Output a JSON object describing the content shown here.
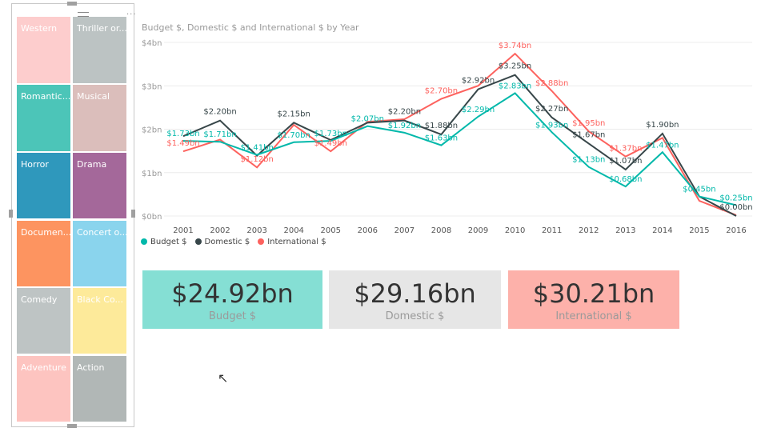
{
  "slicer": {
    "tiles": [
      {
        "label": "Western",
        "color": "#fdcdcd"
      },
      {
        "label": "Thriller or...",
        "color": "#bcc3c3"
      },
      {
        "label": "Romantic...",
        "color": "#4cc5b8"
      },
      {
        "label": "Musical",
        "color": "#dbbebb"
      },
      {
        "label": "Horror",
        "color": "#2f98bc"
      },
      {
        "label": "Drama",
        "color": "#a4689a"
      },
      {
        "label": "Documen...",
        "color": "#fd9460"
      },
      {
        "label": "Concert o...",
        "color": "#8ad4ed"
      },
      {
        "label": "Comedy",
        "color": "#bec4c4"
      },
      {
        "label": "Black Co...",
        "color": "#fdea9a"
      },
      {
        "label": "Adventure",
        "color": "#fdc4c0"
      },
      {
        "label": "Action",
        "color": "#b1b7b6"
      }
    ]
  },
  "chart_data": {
    "type": "line",
    "title": "Budget $, Domestic $ and International $ by Year",
    "x": [
      2001,
      2002,
      2003,
      2004,
      2005,
      2006,
      2007,
      2008,
      2009,
      2010,
      2011,
      2012,
      2013,
      2014,
      2015,
      2016
    ],
    "yticks": [
      "$0bn",
      "$1bn",
      "$2bn",
      "$3bn",
      "$4bn"
    ],
    "ylim": [
      0,
      4
    ],
    "grid": true,
    "legend": "bottom-left",
    "series": [
      {
        "name": "Budget $",
        "color": "#01b8aa",
        "values": [
          1.73,
          1.71,
          1.41,
          1.7,
          1.73,
          2.07,
          1.92,
          1.63,
          2.29,
          2.83,
          1.93,
          1.13,
          0.68,
          1.47,
          0.45,
          0.25
        ],
        "labels": [
          "$1.73bn",
          "$1.71bn",
          "$1.41bn",
          "$1.70bn",
          "$1.73bn",
          "$2.07bn",
          "$1.92bn",
          "$1.63bn",
          "$2.29bn",
          "$2.83bn",
          "$1.93bn",
          "$1.13bn",
          "$0.68bn",
          "$1.47bn",
          "$0.45bn",
          "$0.25bn"
        ]
      },
      {
        "name": "Domestic $",
        "color": "#374649",
        "values": [
          1.84,
          2.2,
          1.39,
          2.15,
          1.75,
          2.15,
          2.2,
          1.88,
          2.92,
          3.25,
          2.27,
          1.67,
          1.07,
          1.9,
          0.45,
          0.0
        ],
        "labels": [
          null,
          "$2.20bn",
          null,
          "$2.15bn",
          null,
          null,
          "$2.20bn",
          "$1.88bn",
          "$2.92bn",
          "$3.25bn",
          "$2.27bn",
          "$1.67bn",
          "$1.07bn",
          "$1.90bn",
          null,
          "$0.00bn"
        ]
      },
      {
        "name": "International $",
        "color": "#fd625e",
        "values": [
          1.49,
          1.76,
          1.12,
          2.1,
          1.49,
          2.17,
          2.23,
          2.7,
          3.0,
          3.74,
          2.88,
          1.95,
          1.37,
          1.8,
          0.35,
          0.02
        ],
        "labels": [
          "$1.49bn",
          null,
          "$1.12bn",
          null,
          "$1.49bn",
          null,
          null,
          "$2.70bn",
          null,
          "$3.74bn",
          "$2.88bn",
          "$1.95bn",
          "$1.37bn",
          null,
          null,
          null
        ]
      }
    ]
  },
  "cards": [
    {
      "value": "$24.92bn",
      "label": "Budget $",
      "color": "#85dfd4"
    },
    {
      "value": "$29.16bn",
      "label": "Domestic $",
      "color": "#e6e6e6"
    },
    {
      "value": "$30.21bn",
      "label": "International $",
      "color": "#fdb1aa"
    }
  ]
}
